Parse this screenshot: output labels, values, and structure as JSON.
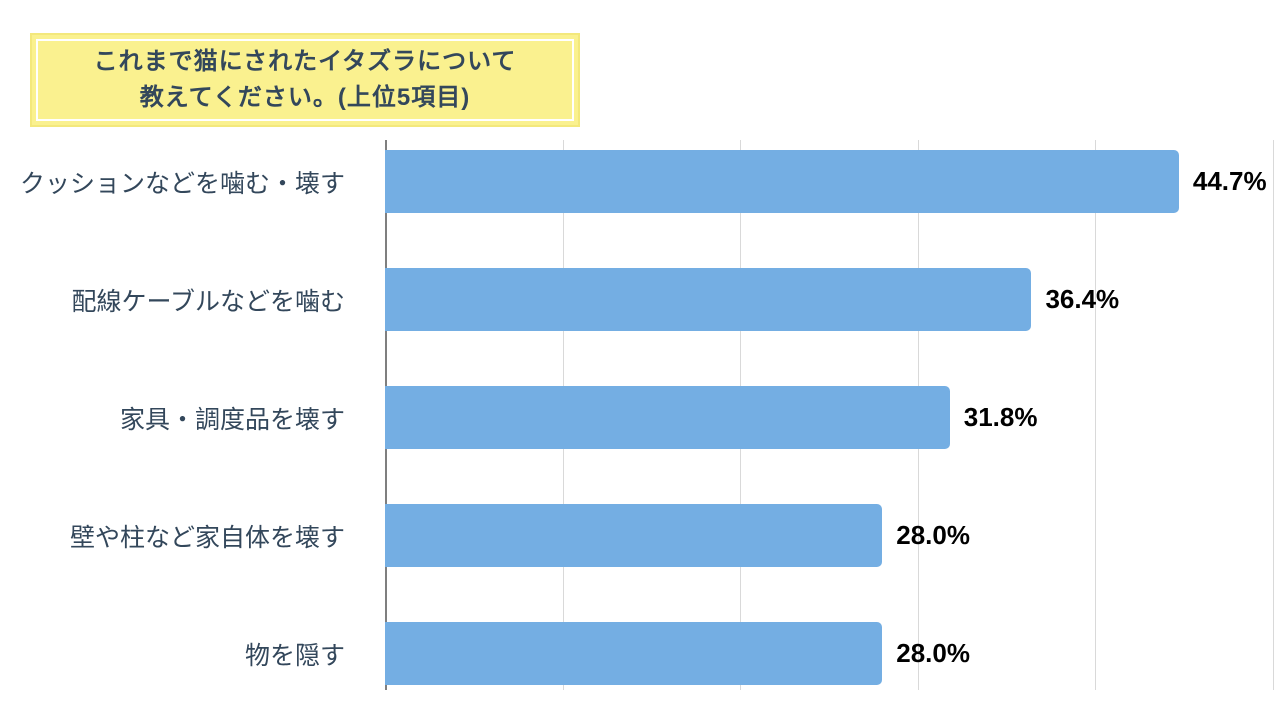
{
  "header": {
    "title_lines": [
      "これまで猫にされたイタズラについて",
      "教えてください。(上位5項目)"
    ]
  },
  "chart_data": {
    "type": "bar",
    "orientation": "horizontal",
    "title": "これまで猫にされたイタズラについて教えてください。(上位5項目)",
    "categories": [
      "クッションなどを噛む・壊す",
      "配線ケーブルなどを噛む",
      "家具・調度品を壊す",
      "壁や柱など家自体を壊す",
      "物を隠す"
    ],
    "values": [
      44.7,
      36.4,
      31.8,
      28.0,
      28.0
    ],
    "value_labels": [
      "44.7%",
      "36.4%",
      "31.8%",
      "28.0%",
      "28.0%"
    ],
    "xlabel": "",
    "ylabel": "",
    "xlim": [
      0,
      50
    ],
    "gridline_interval": 10,
    "grid": true,
    "legend": false,
    "axis_tick_labels_visible": false
  },
  "style": {
    "bar_color": "#74AEE3",
    "gridline_color": "#D9D9D9",
    "axis_color": "#7F7F7F",
    "label_color": "#33475B",
    "value_label_color": "#000000",
    "title_box_fill": "#FAF18F",
    "title_box_outer_border": "#F3E87C",
    "title_box_inner_border": "#FFFFFF"
  }
}
